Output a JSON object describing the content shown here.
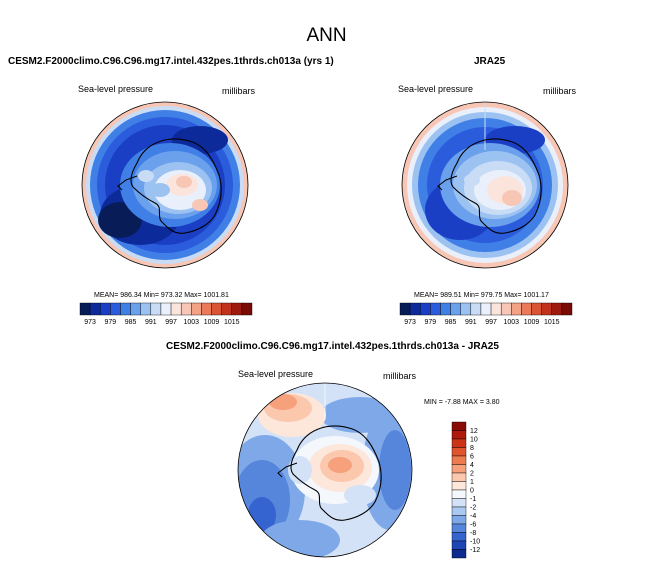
{
  "title": "ANN",
  "panels": [
    {
      "title": "CESM2.F2000climo.C96.C96.mg17.intel.432pes.1thrds.ch013a (yrs 1)",
      "left_label": "Sea-level pressure",
      "right_label": "millibars",
      "stats": "MEAN= 986.34   Min= 973.32   Max= 1001.81"
    },
    {
      "title": "JRA25",
      "left_label": "Sea-level pressure",
      "right_label": "millibars",
      "stats": "MEAN= 989.51   Min= 979.75   Max= 1001.17"
    },
    {
      "title": "CESM2.F2000climo.C96.C96.mg17.intel.432pes.1thrds.ch013a - JRA25",
      "left_label": "Sea-level pressure",
      "right_label": "millibars",
      "stats": "MIN =  -7.88  MAX =   3.80"
    }
  ],
  "colorbar_top": {
    "ticks": [
      "973",
      "979",
      "985",
      "991",
      "997",
      "1003",
      "1009",
      "1015"
    ],
    "colors": [
      "#081d58",
      "#0d2a9a",
      "#1a3fc4",
      "#2b5cdc",
      "#3f7fe6",
      "#6aa0ec",
      "#9cc2f2",
      "#c8dcf6",
      "#e9f0fb",
      "#fbe4dc",
      "#f8c6b4",
      "#f3a285",
      "#ea7a58",
      "#d95433",
      "#c0321c",
      "#9e1a0e",
      "#7a0a05"
    ]
  },
  "colorbar_diff": {
    "ticks": [
      "12",
      "10",
      "8",
      "6",
      "4",
      "2",
      "1",
      "0",
      "-1",
      "-2",
      "-4",
      "-6",
      "-8",
      "-10",
      "-12"
    ],
    "colors": [
      "#8a0a05",
      "#b01a0c",
      "#cc3418",
      "#e0542e",
      "#ee7a50",
      "#f6a07c",
      "#fbc7ad",
      "#fde6da",
      "#f4f7fc",
      "#d3e2f6",
      "#aac8f0",
      "#7ea8e8",
      "#5685dc",
      "#3563cf",
      "#1d45b5",
      "#0d2b8f"
    ]
  },
  "chart_data": [
    {
      "type": "heatmap",
      "title": "CESM2.F2000climo.C96.C96.mg17.intel.432pes.1thrds.ch013a (yrs 1)",
      "variable": "Sea-level pressure",
      "units": "millibars",
      "projection": "south-polar stereographic",
      "mean": 986.34,
      "min": 973.32,
      "max": 1001.81,
      "levels": [
        973,
        976,
        979,
        982,
        985,
        988,
        991,
        994,
        997,
        1000,
        1003,
        1006,
        1009,
        1012,
        1015
      ]
    },
    {
      "type": "heatmap",
      "title": "JRA25",
      "variable": "Sea-level pressure",
      "units": "millibars",
      "projection": "south-polar stereographic",
      "mean": 989.51,
      "min": 979.75,
      "max": 1001.17,
      "levels": [
        973,
        976,
        979,
        982,
        985,
        988,
        991,
        994,
        997,
        1000,
        1003,
        1006,
        1009,
        1012,
        1015
      ]
    },
    {
      "type": "heatmap",
      "title": "CESM2.F2000climo.C96.C96.mg17.intel.432pes.1thrds.ch013a - JRA25",
      "variable": "Sea-level pressure",
      "units": "millibars",
      "projection": "south-polar stereographic",
      "min": -7.88,
      "max": 3.8,
      "levels": [
        -12,
        -10,
        -8,
        -6,
        -4,
        -2,
        -1,
        0,
        1,
        2,
        4,
        6,
        8,
        10,
        12
      ]
    }
  ]
}
